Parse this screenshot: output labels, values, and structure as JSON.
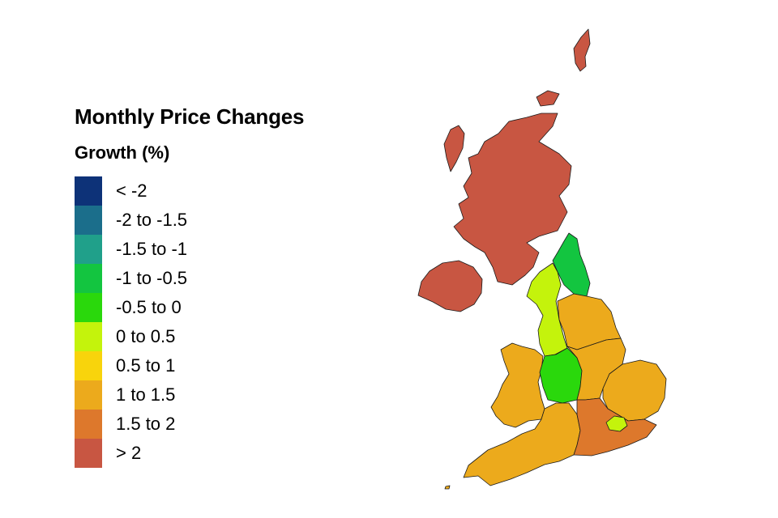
{
  "legend": {
    "title": "Monthly Price Changes",
    "subtitle": "Growth (%)",
    "classes": [
      {
        "label": "< -2",
        "color": "#0d3278"
      },
      {
        "label": "-2 to -1.5",
        "color": "#1b6e8b"
      },
      {
        "label": "-1.5 to -1",
        "color": "#20a08a"
      },
      {
        "label": "-1 to -0.5",
        "color": "#13c540"
      },
      {
        "label": "-0.5 to 0",
        "color": "#2ad80c"
      },
      {
        "label": "0 to 0.5",
        "color": "#c4f30c"
      },
      {
        "label": "0.5 to 1",
        "color": "#f8d40c"
      },
      {
        "label": "1 to 1.5",
        "color": "#ecaa1c"
      },
      {
        "label": "1.5 to 2",
        "color": "#dd782c"
      },
      {
        "label": "> 2",
        "color": "#c85642"
      }
    ]
  },
  "map": {
    "regions": [
      {
        "name": "scotland",
        "color": "#c85642"
      },
      {
        "name": "northern-ireland",
        "color": "#c85642"
      },
      {
        "name": "north-east",
        "color": "#13c540"
      },
      {
        "name": "north-west",
        "color": "#c4f30c"
      },
      {
        "name": "yorkshire-and-the-humber",
        "color": "#ecaa1c"
      },
      {
        "name": "wales",
        "color": "#ecaa1c"
      },
      {
        "name": "west-midlands",
        "color": "#2ad80c"
      },
      {
        "name": "east-midlands",
        "color": "#ecaa1c"
      },
      {
        "name": "east-of-england",
        "color": "#ecaa1c"
      },
      {
        "name": "london",
        "color": "#c4f30c"
      },
      {
        "name": "south-west",
        "color": "#ecaa1c"
      },
      {
        "name": "south-east",
        "color": "#dd782c"
      }
    ]
  }
}
